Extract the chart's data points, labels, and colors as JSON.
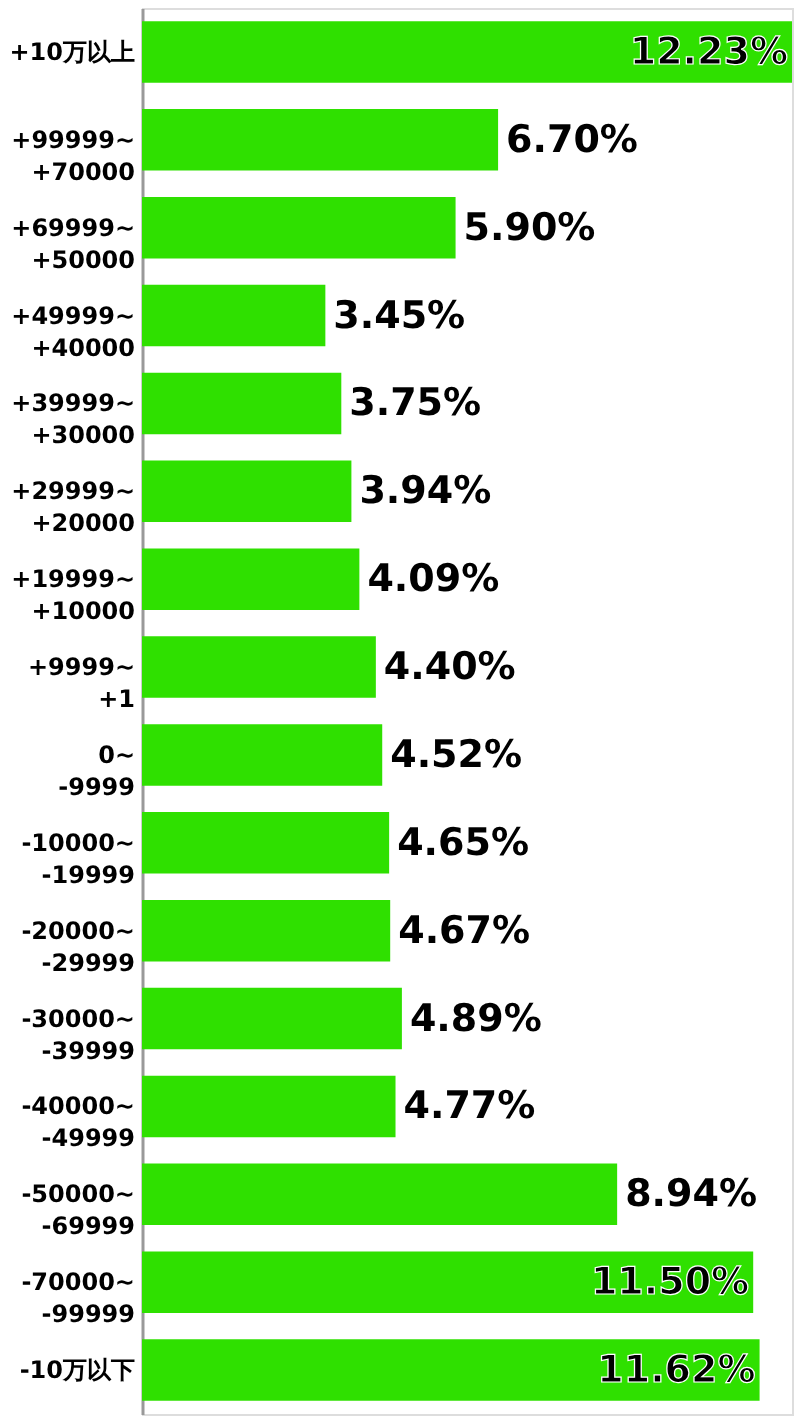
{
  "chart_data": {
    "type": "bar",
    "orientation": "horizontal",
    "color": "#2fe000",
    "categories": [
      "+10万以上",
      "+99999~\n+70000",
      "+69999~\n+50000",
      "+49999~\n+40000",
      "+39999~\n+30000",
      "+29999~\n+20000",
      "+19999~\n+10000",
      "+9999~\n+1",
      "0~\n-9999",
      "-10000~\n-19999",
      "-20000~\n-29999",
      "-30000~\n-39999",
      "-40000~\n-49999",
      "-50000~\n-69999",
      "-70000~\n-99999",
      "-10万以下"
    ],
    "values": [
      12.23,
      6.7,
      5.9,
      3.45,
      3.75,
      3.94,
      4.09,
      4.4,
      4.52,
      4.65,
      4.67,
      4.89,
      4.77,
      8.94,
      11.5,
      11.62
    ],
    "value_labels": [
      "12.23%",
      "6.70%",
      "5.90%",
      "3.45%",
      "3.75%",
      "3.94%",
      "4.09%",
      "4.40%",
      "4.52%",
      "4.65%",
      "4.67%",
      "4.89%",
      "4.77%",
      "8.94%",
      "11.50%",
      "11.62%"
    ],
    "grid": false
  }
}
